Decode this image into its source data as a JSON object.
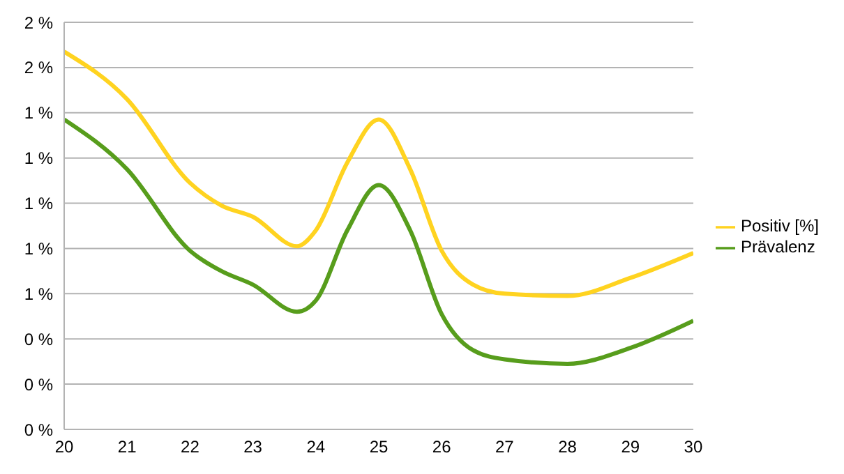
{
  "chart_data": {
    "type": "line",
    "x": [
      20,
      21,
      22,
      22.5,
      23,
      23.7,
      24,
      24.5,
      25,
      25.5,
      26,
      26.5,
      27,
      28,
      29,
      30
    ],
    "series": [
      {
        "name": "Positiv [%]",
        "color": "#ffd320",
        "values": [
          1.67,
          1.46,
          1.09,
          0.99,
          0.94,
          0.81,
          0.88,
          1.18,
          1.37,
          1.15,
          0.79,
          0.64,
          0.6,
          0.59,
          0.67,
          0.78
        ]
      },
      {
        "name": "Prävalenz",
        "color": "#579d1c",
        "values": [
          1.37,
          1.15,
          0.79,
          0.7,
          0.64,
          0.52,
          0.57,
          0.88,
          1.08,
          0.88,
          0.51,
          0.35,
          0.31,
          0.29,
          0.36,
          0.48
        ]
      }
    ],
    "xlim": [
      20,
      30
    ],
    "xticks": [
      20,
      21,
      22,
      23,
      24,
      25,
      26,
      27,
      28,
      29,
      30
    ],
    "ylim": [
      0,
      1.8
    ],
    "yticks": [
      {
        "value": 0,
        "label": "0 %"
      },
      {
        "value": 0.2,
        "label": "0 %"
      },
      {
        "value": 0.4,
        "label": "0 %"
      },
      {
        "value": 0.6,
        "label": "1 %"
      },
      {
        "value": 0.8,
        "label": "1 %"
      },
      {
        "value": 1,
        "label": "1 %"
      },
      {
        "value": 1.2,
        "label": "1 %"
      },
      {
        "value": 1.4,
        "label": "1 %"
      },
      {
        "value": 1.6,
        "label": "2 %"
      },
      {
        "value": 1.8,
        "label": "2 %"
      }
    ],
    "grid": "y",
    "legend": "right",
    "marker": "none",
    "line_style": "solid"
  }
}
